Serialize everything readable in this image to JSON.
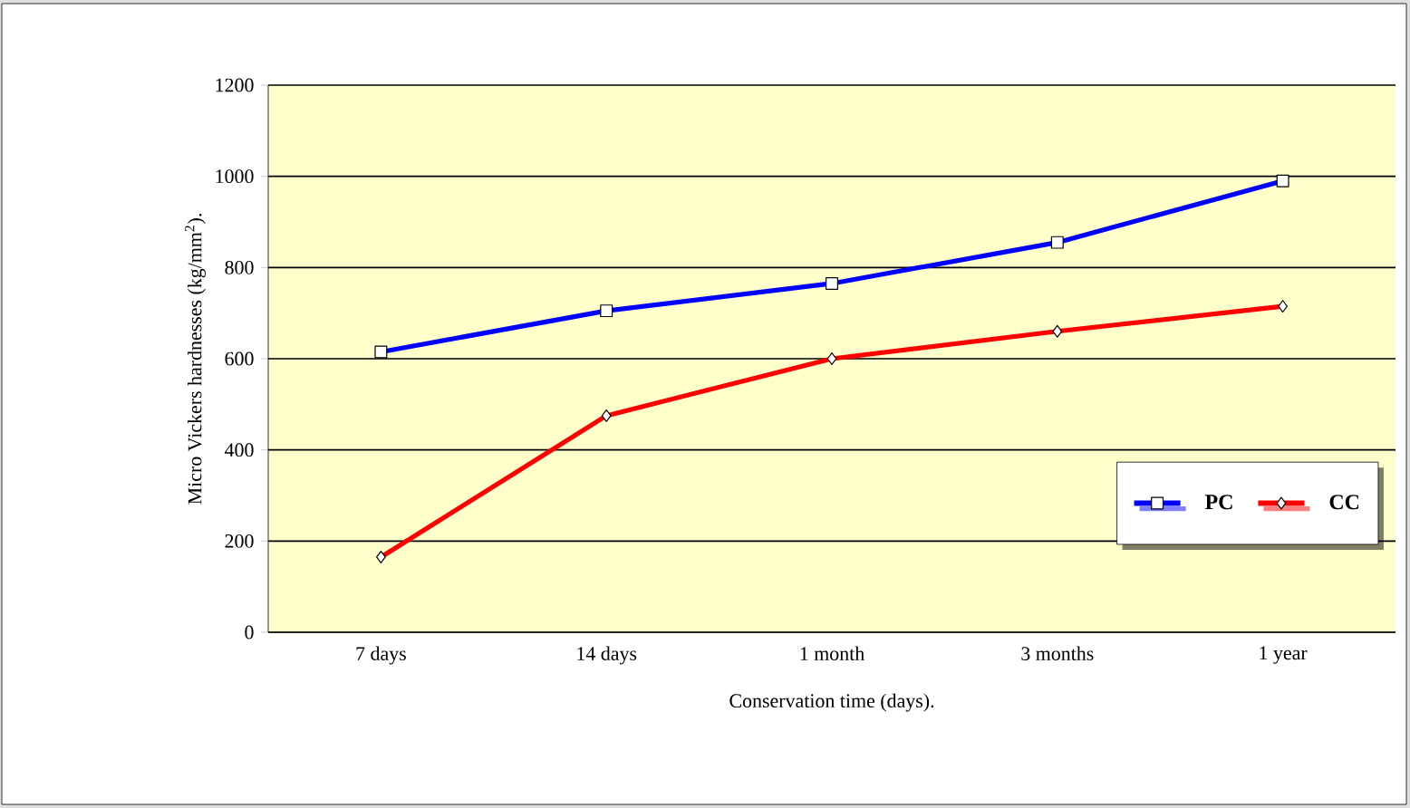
{
  "chart_data": {
    "type": "line",
    "xlabel": "Conservation time (days).",
    "ylabel": "Micro Vickers hardnesses (kg/mm$^{2}$).",
    "categories": [
      "7 days",
      "14 days",
      "1 month",
      "3 months",
      "1 year"
    ],
    "series": [
      {
        "name": "PC",
        "color": "#0000ff",
        "marker": "square",
        "values": [
          615,
          705,
          765,
          855,
          990
        ]
      },
      {
        "name": "CC",
        "color": "#ff0000",
        "marker": "diamond",
        "values": [
          165,
          475,
          600,
          660,
          715
        ]
      }
    ],
    "ylim": [
      0,
      1200
    ],
    "yticks": [
      0,
      200,
      400,
      600,
      800,
      1000,
      1200
    ],
    "grid": "y",
    "legend": "bottom right",
    "line_style": "solid"
  }
}
